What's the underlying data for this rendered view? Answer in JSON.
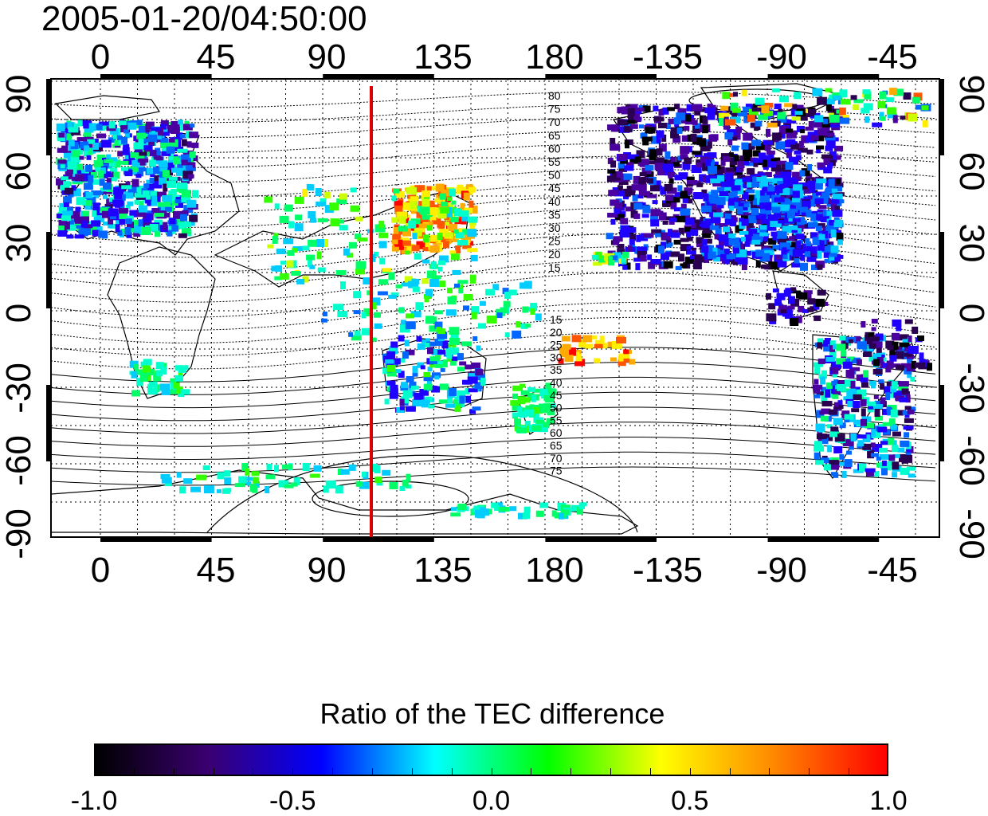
{
  "title": "2005-01-20/04:50:00",
  "map": {
    "top_axis_labels": [
      "0",
      "45",
      "90",
      "135",
      "180",
      "-135",
      "-90",
      "-45"
    ],
    "bottom_axis_labels": [
      "0",
      "45",
      "90",
      "135",
      "180",
      "-135",
      "-90",
      "-45"
    ],
    "left_axis_labels": [
      "90",
      "60",
      "30",
      "0",
      "-30",
      "-60",
      "-90"
    ],
    "right_axis_labels": [
      "90",
      "60",
      "30",
      "0",
      "-30",
      "-60",
      "-90"
    ],
    "contour_labels_north": [
      "80",
      "75",
      "70",
      "65",
      "60",
      "55",
      "50",
      "45",
      "40",
      "35",
      "30",
      "25",
      "20",
      "15"
    ],
    "contour_labels_south": [
      "15",
      "20",
      "25",
      "30",
      "35",
      "40",
      "45",
      "50",
      "55",
      "60",
      "65",
      "70",
      "75"
    ],
    "longitude_marker_color": "#dd0000"
  },
  "colorbar": {
    "title": "Ratio of the TEC difference",
    "tick_labels": [
      "-1.0",
      "-0.5",
      "0.0",
      "0.5",
      "1.0"
    ],
    "colors": [
      "#000000",
      "#3a0070",
      "#0000ff",
      "#00ffff",
      "#00ff00",
      "#ffff00",
      "#ff8800",
      "#ff0000"
    ]
  }
}
